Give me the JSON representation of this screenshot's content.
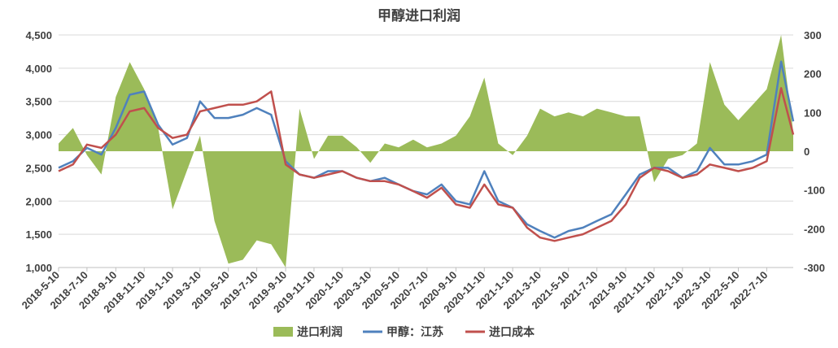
{
  "chart_data": {
    "type": "area",
    "title": "甲醇进口利润",
    "grid": true,
    "legend_position": "bottom",
    "x_tick_labels": [
      "2018-5-10",
      "2018-7-10",
      "2018-9-10",
      "2018-11-10",
      "2019-1-10",
      "2019-3-10",
      "2019-5-10",
      "2019-7-10",
      "2019-9-10",
      "2019-11-10",
      "2020-1-10",
      "2020-3-10",
      "2020-5-10",
      "2020-7-10",
      "2020-9-10",
      "2020-11-10",
      "2021-1-10",
      "2021-3-10",
      "2021-5-10",
      "2021-7-10",
      "2021-9-10",
      "2021-11-10",
      "2022-1-10",
      "2022-3-10",
      "2022-5-10",
      "2022-7-10"
    ],
    "y_left": {
      "ylim": [
        1000,
        4500
      ],
      "ticks": [
        "1,000",
        "1,500",
        "2,000",
        "2,500",
        "3,000",
        "3,500",
        "4,000",
        "4,500"
      ]
    },
    "y_right": {
      "ylim": [
        -300,
        300
      ],
      "ticks": [
        "-300",
        "-200",
        "-100",
        "0",
        "100",
        "200",
        "300"
      ]
    },
    "series": [
      {
        "name": "进口利润",
        "kind": "area",
        "axis": "right",
        "color": "#9BBB59",
        "x": [
          "2018-5-10",
          "2018-6-10",
          "2018-7-10",
          "2018-8-10",
          "2018-9-10",
          "2018-10-10",
          "2018-11-10",
          "2018-12-10",
          "2019-1-10",
          "2019-2-10",
          "2019-3-10",
          "2019-4-10",
          "2019-5-10",
          "2019-6-10",
          "2019-7-10",
          "2019-8-10",
          "2019-9-10",
          "2019-10-10",
          "2019-11-10",
          "2019-12-10",
          "2020-1-10",
          "2020-2-10",
          "2020-3-10",
          "2020-4-10",
          "2020-5-10",
          "2020-6-10",
          "2020-7-10",
          "2020-8-10",
          "2020-9-10",
          "2020-10-10",
          "2020-11-10",
          "2020-12-10",
          "2021-1-10",
          "2021-2-10",
          "2021-3-10",
          "2021-4-10",
          "2021-5-10",
          "2021-6-10",
          "2021-7-10",
          "2021-8-10",
          "2021-9-10",
          "2021-10-10",
          "2021-11-10",
          "2021-12-10",
          "2022-1-10",
          "2022-2-10",
          "2022-3-10",
          "2022-4-10",
          "2022-5-10",
          "2022-6-10",
          "2022-7-10",
          "2022-8-10",
          "2022-9-5"
        ],
        "values": [
          20,
          60,
          -10,
          -60,
          140,
          230,
          160,
          60,
          -150,
          -50,
          40,
          -180,
          -290,
          -280,
          -230,
          -240,
          -300,
          110,
          -20,
          40,
          40,
          10,
          -30,
          20,
          10,
          30,
          10,
          20,
          40,
          90,
          190,
          20,
          -10,
          40,
          110,
          90,
          100,
          90,
          110,
          100,
          90,
          90,
          -80,
          -20,
          -10,
          20,
          230,
          120,
          80,
          120,
          160,
          300,
          50
        ]
      },
      {
        "name": "甲醇：江苏",
        "kind": "line",
        "axis": "left",
        "color": "#4F81BD",
        "x": [
          "2018-5-10",
          "2018-6-10",
          "2018-7-10",
          "2018-8-10",
          "2018-9-10",
          "2018-10-10",
          "2018-11-10",
          "2018-12-10",
          "2019-1-10",
          "2019-2-10",
          "2019-3-10",
          "2019-4-10",
          "2019-5-10",
          "2019-6-10",
          "2019-7-10",
          "2019-8-10",
          "2019-9-10",
          "2019-10-10",
          "2019-11-10",
          "2019-12-10",
          "2020-1-10",
          "2020-2-10",
          "2020-3-10",
          "2020-4-10",
          "2020-5-10",
          "2020-6-10",
          "2020-7-10",
          "2020-8-10",
          "2020-9-10",
          "2020-10-10",
          "2020-11-10",
          "2020-12-10",
          "2021-1-10",
          "2021-2-10",
          "2021-3-10",
          "2021-4-10",
          "2021-5-10",
          "2021-6-10",
          "2021-7-10",
          "2021-8-10",
          "2021-9-10",
          "2021-10-10",
          "2021-11-10",
          "2021-12-10",
          "2022-1-10",
          "2022-2-10",
          "2022-3-10",
          "2022-4-10",
          "2022-5-10",
          "2022-6-10",
          "2022-7-10",
          "2022-8-10",
          "2022-9-5"
        ],
        "values": [
          2500,
          2600,
          2800,
          2700,
          3100,
          3600,
          3650,
          3150,
          2850,
          2950,
          3500,
          3250,
          3250,
          3300,
          3400,
          3300,
          2600,
          2400,
          2350,
          2450,
          2450,
          2350,
          2300,
          2350,
          2250,
          2150,
          2100,
          2250,
          2000,
          1950,
          2450,
          2000,
          1900,
          1650,
          1550,
          1450,
          1550,
          1600,
          1700,
          1800,
          2100,
          2400,
          2500,
          2500,
          2350,
          2450,
          2800,
          2550,
          2550,
          2600,
          2700,
          4100,
          3200
        ]
      },
      {
        "name": "进口成本",
        "kind": "line",
        "axis": "left",
        "color": "#C0504D",
        "x": [
          "2018-5-10",
          "2018-6-10",
          "2018-7-10",
          "2018-8-10",
          "2018-9-10",
          "2018-10-10",
          "2018-11-10",
          "2018-12-10",
          "2019-1-10",
          "2019-2-10",
          "2019-3-10",
          "2019-4-10",
          "2019-5-10",
          "2019-6-10",
          "2019-7-10",
          "2019-8-10",
          "2019-9-10",
          "2019-10-10",
          "2019-11-10",
          "2019-12-10",
          "2020-1-10",
          "2020-2-10",
          "2020-3-10",
          "2020-4-10",
          "2020-5-10",
          "2020-6-10",
          "2020-7-10",
          "2020-8-10",
          "2020-9-10",
          "2020-10-10",
          "2020-11-10",
          "2020-12-10",
          "2021-1-10",
          "2021-2-10",
          "2021-3-10",
          "2021-4-10",
          "2021-5-10",
          "2021-6-10",
          "2021-7-10",
          "2021-8-10",
          "2021-9-10",
          "2021-10-10",
          "2021-11-10",
          "2021-12-10",
          "2022-1-10",
          "2022-2-10",
          "2022-3-10",
          "2022-4-10",
          "2022-5-10",
          "2022-6-10",
          "2022-7-10",
          "2022-8-10",
          "2022-9-5"
        ],
        "values": [
          2450,
          2550,
          2850,
          2800,
          3000,
          3350,
          3400,
          3100,
          2950,
          3000,
          3350,
          3400,
          3450,
          3450,
          3500,
          3650,
          2550,
          2400,
          2350,
          2400,
          2450,
          2350,
          2300,
          2300,
          2250,
          2150,
          2050,
          2200,
          1950,
          1900,
          2250,
          1950,
          1900,
          1600,
          1450,
          1400,
          1450,
          1500,
          1600,
          1700,
          1950,
          2350,
          2500,
          2450,
          2350,
          2400,
          2550,
          2500,
          2450,
          2500,
          2600,
          3700,
          3000
        ]
      }
    ]
  }
}
